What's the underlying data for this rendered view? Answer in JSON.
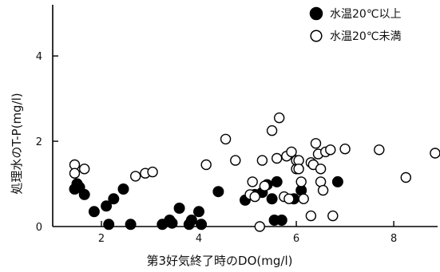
{
  "chart_data": {
    "type": "scatter",
    "xlabel": "第3好気終了時のDO(mg/l)",
    "ylabel": "処理水のT-P(mg/l)",
    "xlim": [
      1.0,
      8.9
    ],
    "ylim": [
      0.0,
      5.2
    ],
    "x_ticks": [
      2,
      4,
      6,
      8
    ],
    "y_ticks": [
      0,
      2,
      4
    ],
    "x_tick_labels": [
      "2",
      "4",
      "6",
      "8"
    ],
    "y_tick_labels": [
      "0",
      "2",
      "4"
    ],
    "legend_position": "top-right",
    "grid": false,
    "series": [
      {
        "name": "水温20℃以上",
        "marker": "filled-circle",
        "color": "#000000",
        "points": [
          [
            1.45,
            0.88
          ],
          [
            1.5,
            1.0
          ],
          [
            1.55,
            0.92
          ],
          [
            1.65,
            0.75
          ],
          [
            1.85,
            0.35
          ],
          [
            2.1,
            0.48
          ],
          [
            2.15,
            0.05
          ],
          [
            2.25,
            0.65
          ],
          [
            2.45,
            0.88
          ],
          [
            2.6,
            0.05
          ],
          [
            3.25,
            0.05
          ],
          [
            3.4,
            0.15
          ],
          [
            3.45,
            0.08
          ],
          [
            3.6,
            0.43
          ],
          [
            3.8,
            0.05
          ],
          [
            3.85,
            0.15
          ],
          [
            4.0,
            0.35
          ],
          [
            4.05,
            0.05
          ],
          [
            4.4,
            0.82
          ],
          [
            4.95,
            0.62
          ],
          [
            5.15,
            0.75
          ],
          [
            5.3,
            0.8
          ],
          [
            5.4,
            0.98
          ],
          [
            5.5,
            0.65
          ],
          [
            5.55,
            0.15
          ],
          [
            5.6,
            1.05
          ],
          [
            5.7,
            0.15
          ],
          [
            5.95,
            0.65
          ],
          [
            6.1,
            0.85
          ],
          [
            6.85,
            1.05
          ]
        ]
      },
      {
        "name": "水温20℃未満",
        "marker": "open-circle",
        "color": "#000000",
        "points": [
          [
            1.45,
            1.45
          ],
          [
            1.45,
            1.25
          ],
          [
            1.65,
            1.35
          ],
          [
            2.7,
            1.18
          ],
          [
            2.9,
            1.25
          ],
          [
            3.05,
            1.28
          ],
          [
            4.15,
            1.45
          ],
          [
            4.55,
            2.05
          ],
          [
            4.75,
            1.55
          ],
          [
            5.05,
            0.75
          ],
          [
            5.1,
            1.05
          ],
          [
            5.15,
            0.7
          ],
          [
            5.25,
            0.0
          ],
          [
            5.3,
            1.55
          ],
          [
            5.35,
            0.95
          ],
          [
            5.5,
            2.25
          ],
          [
            5.6,
            1.6
          ],
          [
            5.65,
            2.55
          ],
          [
            5.75,
            0.7
          ],
          [
            5.8,
            1.65
          ],
          [
            5.85,
            0.65
          ],
          [
            5.9,
            1.75
          ],
          [
            6.0,
            1.35
          ],
          [
            6.0,
            1.55
          ],
          [
            6.05,
            1.55
          ],
          [
            6.05,
            1.35
          ],
          [
            6.1,
            1.05
          ],
          [
            6.15,
            0.65
          ],
          [
            6.3,
            1.5
          ],
          [
            6.3,
            0.25
          ],
          [
            6.35,
            1.45
          ],
          [
            6.4,
            1.95
          ],
          [
            6.45,
            1.7
          ],
          [
            6.5,
            1.35
          ],
          [
            6.5,
            1.05
          ],
          [
            6.55,
            0.85
          ],
          [
            6.6,
            1.75
          ],
          [
            6.7,
            1.8
          ],
          [
            6.75,
            0.25
          ],
          [
            7.0,
            1.82
          ],
          [
            7.7,
            1.8
          ],
          [
            8.25,
            1.15
          ],
          [
            8.85,
            1.72
          ]
        ]
      }
    ]
  }
}
